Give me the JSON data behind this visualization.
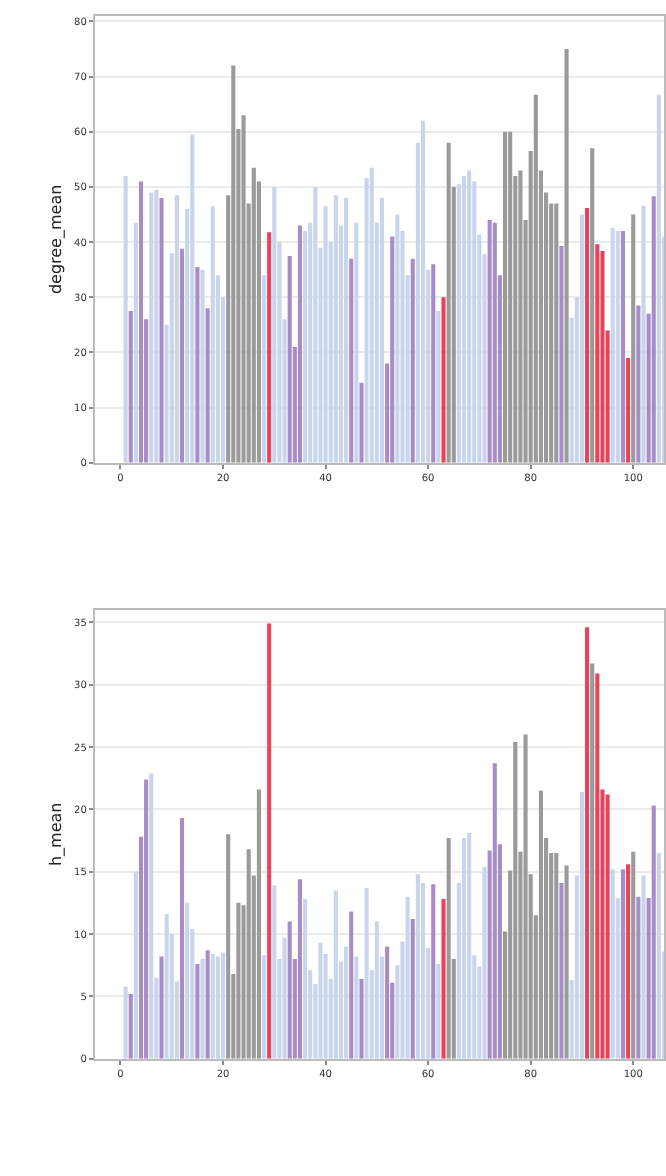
{
  "chart_data": [
    {
      "type": "bar",
      "ylabel": "degree_mean",
      "x": [
        1,
        2,
        3,
        4,
        5,
        6,
        7,
        8,
        9,
        10,
        11,
        12,
        13,
        14,
        15,
        16,
        17,
        18,
        19,
        20,
        21,
        22,
        23,
        24,
        25,
        26,
        27,
        28,
        29,
        30,
        31,
        32,
        33,
        34,
        35,
        36,
        37,
        38,
        39,
        40,
        41,
        42,
        43,
        44,
        45,
        46,
        47,
        48,
        49,
        50,
        51,
        52,
        53,
        54,
        55,
        56,
        57,
        58,
        59,
        60,
        61,
        62,
        63,
        64,
        65,
        66,
        67,
        68,
        69,
        70,
        71,
        72,
        73,
        74,
        75,
        76,
        77,
        78,
        79,
        80,
        81,
        82,
        83,
        84,
        85,
        86,
        87,
        88,
        89,
        90,
        91,
        92,
        93,
        94,
        95,
        96,
        97,
        98,
        99,
        100,
        101,
        102,
        103,
        104,
        105,
        106
      ],
      "values": [
        52,
        27.5,
        43.5,
        51,
        26,
        49,
        49.5,
        48,
        25,
        38,
        48.5,
        38.8,
        46,
        59.5,
        35.5,
        35,
        28,
        46.5,
        34,
        30,
        48.5,
        72,
        60.5,
        63,
        47,
        53.5,
        51,
        34,
        41.8,
        50,
        40,
        26,
        37.5,
        21,
        43,
        42,
        43.5,
        50,
        39,
        46.5,
        40,
        48.5,
        43,
        48,
        37,
        43.5,
        14.5,
        51.6,
        53.5,
        43.5,
        48,
        18,
        41,
        45,
        42,
        34,
        37,
        58,
        62,
        35,
        36,
        27.5,
        30,
        58,
        50,
        50.5,
        52,
        53,
        51,
        41.4,
        37.8,
        44,
        43.5,
        34,
        60,
        60,
        52,
        53,
        44,
        56.5,
        66.7,
        53,
        49,
        47,
        47,
        39.3,
        75,
        26.3,
        30,
        45,
        46.2,
        57,
        39.6,
        38.4,
        24,
        42.6,
        42,
        42,
        19,
        45,
        28.5,
        46.6,
        27,
        48.3,
        66.7,
        41
      ],
      "colors": [
        "#c9d5ec",
        "#a88cc8",
        "#c9d5ec",
        "#a88cc8",
        "#a88cc8",
        "#c9d5ec",
        "#c9d5ec",
        "#a88cc8",
        "#c9d5ec",
        "#c9d5ec",
        "#c9d5ec",
        "#a88cc8",
        "#c9d5ec",
        "#c9d5ec",
        "#a88cc8",
        "#c9d5ec",
        "#a88cc8",
        "#c9d5ec",
        "#c9d5ec",
        "#c9d5ec",
        "#9a9a9a",
        "#9a9a9a",
        "#9a9a9a",
        "#9a9a9a",
        "#9a9a9a",
        "#9a9a9a",
        "#9a9a9a",
        "#c9d5ec",
        "#e8435a",
        "#c9d5ec",
        "#c9d5ec",
        "#c9d5ec",
        "#a88cc8",
        "#a88cc8",
        "#a88cc8",
        "#c9d5ec",
        "#c9d5ec",
        "#c9d5ec",
        "#c9d5ec",
        "#c9d5ec",
        "#c9d5ec",
        "#c9d5ec",
        "#c9d5ec",
        "#c9d5ec",
        "#a88cc8",
        "#c9d5ec",
        "#a88cc8",
        "#c9d5ec",
        "#c9d5ec",
        "#c9d5ec",
        "#c9d5ec",
        "#a88cc8",
        "#a88cc8",
        "#c9d5ec",
        "#c9d5ec",
        "#c9d5ec",
        "#a88cc8",
        "#c9d5ec",
        "#c9d5ec",
        "#c9d5ec",
        "#a88cc8",
        "#c9d5ec",
        "#e8435a",
        "#9a9a9a",
        "#9a9a9a",
        "#c9d5ec",
        "#c9d5ec",
        "#c9d5ec",
        "#c9d5ec",
        "#c9d5ec",
        "#c9d5ec",
        "#a88cc8",
        "#a88cc8",
        "#a88cc8",
        "#9a9a9a",
        "#9a9a9a",
        "#9a9a9a",
        "#9a9a9a",
        "#9a9a9a",
        "#9a9a9a",
        "#9a9a9a",
        "#9a9a9a",
        "#9a9a9a",
        "#9a9a9a",
        "#9a9a9a",
        "#a88cc8",
        "#9a9a9a",
        "#c9d5ec",
        "#c9d5ec",
        "#c9d5ec",
        "#e8435a",
        "#9a9a9a",
        "#e8435a",
        "#e8435a",
        "#e8435a",
        "#c9d5ec",
        "#c9d5ec",
        "#a88cc8",
        "#e8435a",
        "#9a9a9a",
        "#a88cc8",
        "#c9d5ec",
        "#a88cc8",
        "#a88cc8",
        "#c9d5ec",
        "#c9d5ec"
      ],
      "xlim": [
        -5,
        106
      ],
      "xticks": [
        0,
        20,
        40,
        60,
        80,
        100
      ],
      "ylim": [
        0,
        81
      ],
      "yticks": [
        0,
        10,
        20,
        30,
        40,
        50,
        60,
        70,
        80
      ],
      "grid": "y"
    },
    {
      "type": "bar",
      "ylabel": "h_mean",
      "x": [
        1,
        2,
        3,
        4,
        5,
        6,
        7,
        8,
        9,
        10,
        11,
        12,
        13,
        14,
        15,
        16,
        17,
        18,
        19,
        20,
        21,
        22,
        23,
        24,
        25,
        26,
        27,
        28,
        29,
        30,
        31,
        32,
        33,
        34,
        35,
        36,
        37,
        38,
        39,
        40,
        41,
        42,
        43,
        44,
        45,
        46,
        47,
        48,
        49,
        50,
        51,
        52,
        53,
        54,
        55,
        56,
        57,
        58,
        59,
        60,
        61,
        62,
        63,
        64,
        65,
        66,
        67,
        68,
        69,
        70,
        71,
        72,
        73,
        74,
        75,
        76,
        77,
        78,
        79,
        80,
        81,
        82,
        83,
        84,
        85,
        86,
        87,
        88,
        89,
        90,
        91,
        92,
        93,
        94,
        95,
        96,
        97,
        98,
        99,
        100,
        101,
        102,
        103,
        104,
        105,
        106
      ],
      "values": [
        5.8,
        5.2,
        15,
        17.8,
        22.4,
        22.9,
        6.5,
        8.2,
        11.6,
        10,
        6.2,
        19.3,
        12.5,
        10.4,
        7.6,
        8,
        8.7,
        8.4,
        8.2,
        8.5,
        18,
        6.8,
        12.5,
        12.3,
        16.8,
        14.7,
        21.6,
        8.3,
        34.9,
        13.9,
        8,
        9.7,
        11,
        8,
        14.4,
        12.8,
        7.1,
        6,
        9.3,
        8.4,
        6.4,
        13.5,
        7.8,
        9,
        11.8,
        8.2,
        6.4,
        13.7,
        7.1,
        11,
        8.2,
        9,
        6.1,
        7.5,
        9.4,
        13,
        11.2,
        14.8,
        14.1,
        8.9,
        14,
        7.6,
        12.8,
        17.7,
        8,
        14.1,
        17.7,
        18.1,
        8.3,
        7.4,
        15.4,
        16.7,
        23.7,
        17.2,
        10.2,
        15.1,
        25.4,
        16.6,
        26,
        14.8,
        11.5,
        21.5,
        17.7,
        16.5,
        16.5,
        14.1,
        15.5,
        6.3,
        14.7,
        21.4,
        34.6,
        31.7,
        30.9,
        21.6,
        21.2,
        15.2,
        12.9,
        15.2,
        15.6,
        16.6,
        13,
        14.7,
        12.9,
        20.3,
        16.5,
        8.6
      ],
      "colors": [
        "#c9d5ec",
        "#a88cc8",
        "#c9d5ec",
        "#a88cc8",
        "#a88cc8",
        "#c9d5ec",
        "#c9d5ec",
        "#a88cc8",
        "#c9d5ec",
        "#c9d5ec",
        "#c9d5ec",
        "#a88cc8",
        "#c9d5ec",
        "#c9d5ec",
        "#a88cc8",
        "#c9d5ec",
        "#a88cc8",
        "#c9d5ec",
        "#c9d5ec",
        "#c9d5ec",
        "#9a9a9a",
        "#9a9a9a",
        "#9a9a9a",
        "#9a9a9a",
        "#9a9a9a",
        "#9a9a9a",
        "#9a9a9a",
        "#c9d5ec",
        "#e8435a",
        "#c9d5ec",
        "#c9d5ec",
        "#c9d5ec",
        "#a88cc8",
        "#a88cc8",
        "#a88cc8",
        "#c9d5ec",
        "#c9d5ec",
        "#c9d5ec",
        "#c9d5ec",
        "#c9d5ec",
        "#c9d5ec",
        "#c9d5ec",
        "#c9d5ec",
        "#c9d5ec",
        "#a88cc8",
        "#c9d5ec",
        "#a88cc8",
        "#c9d5ec",
        "#c9d5ec",
        "#c9d5ec",
        "#c9d5ec",
        "#a88cc8",
        "#a88cc8",
        "#c9d5ec",
        "#c9d5ec",
        "#c9d5ec",
        "#a88cc8",
        "#c9d5ec",
        "#c9d5ec",
        "#c9d5ec",
        "#a88cc8",
        "#c9d5ec",
        "#e8435a",
        "#9a9a9a",
        "#9a9a9a",
        "#c9d5ec",
        "#c9d5ec",
        "#c9d5ec",
        "#c9d5ec",
        "#c9d5ec",
        "#c9d5ec",
        "#a88cc8",
        "#a88cc8",
        "#a88cc8",
        "#9a9a9a",
        "#9a9a9a",
        "#9a9a9a",
        "#9a9a9a",
        "#9a9a9a",
        "#9a9a9a",
        "#9a9a9a",
        "#9a9a9a",
        "#9a9a9a",
        "#9a9a9a",
        "#9a9a9a",
        "#a88cc8",
        "#9a9a9a",
        "#c9d5ec",
        "#c9d5ec",
        "#c9d5ec",
        "#e8435a",
        "#9a9a9a",
        "#e8435a",
        "#e8435a",
        "#e8435a",
        "#c9d5ec",
        "#c9d5ec",
        "#a88cc8",
        "#e8435a",
        "#9a9a9a",
        "#a88cc8",
        "#c9d5ec",
        "#a88cc8",
        "#a88cc8",
        "#c9d5ec",
        "#c9d5ec"
      ],
      "xlim": [
        -5,
        106
      ],
      "xticks": [
        0,
        20,
        40,
        60,
        80,
        100
      ],
      "ylim": [
        0,
        36
      ],
      "yticks": [
        0,
        5,
        10,
        15,
        20,
        25,
        30,
        35
      ],
      "grid": "y"
    }
  ]
}
